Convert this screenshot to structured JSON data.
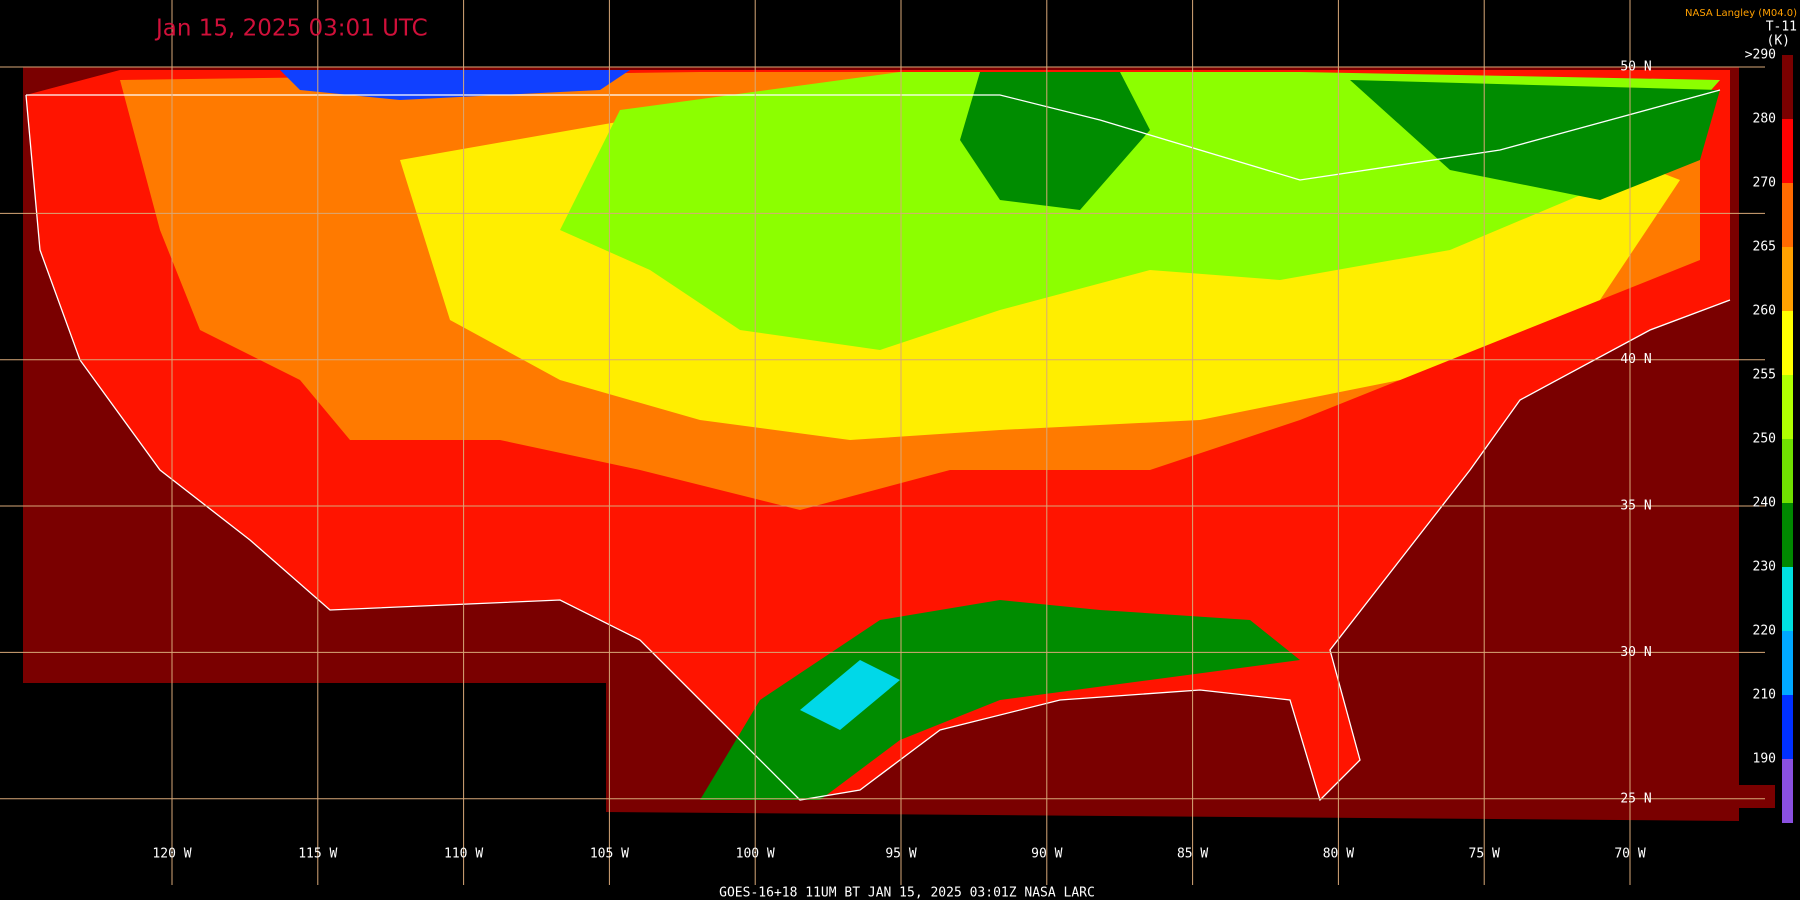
{
  "title": "Jan 15, 2025 03:01 UTC",
  "credit": "NASA Langley (M04.0)",
  "channel": "T-11",
  "unit": "(K)",
  "footer": "GOES-16+18  11UM BT  JAN 15, 2025 03:01Z  NASA LARC",
  "grid": {
    "lats": [
      50,
      45,
      40,
      35,
      30,
      25
    ],
    "lat_labels": [
      "50 N",
      null,
      "40 N",
      "35 N",
      "30 N",
      "25 N"
    ],
    "lons": [
      120,
      115,
      110,
      105,
      100,
      95,
      90,
      85,
      80,
      75,
      70
    ],
    "lon_labels": [
      "120 W",
      "115 W",
      "110 W",
      "105 W",
      "100 W",
      "95 W",
      "90 W",
      "85 W",
      "80 W",
      "75 W",
      "70 W"
    ]
  },
  "colorbar": {
    "ticks": [
      {
        "value": 290,
        "label": ">290"
      },
      280,
      270,
      265,
      260,
      255,
      250,
      240,
      230,
      220,
      210,
      190
    ],
    "colors": [
      "#7a0000",
      "#ff0000",
      "#ff6a00",
      "#ffa000",
      "#ffff00",
      "#b0ff00",
      "#70e000",
      "#008800",
      "#00e0e0",
      "#00a8ff",
      "#0030ff",
      "#8a50e0"
    ]
  }
}
